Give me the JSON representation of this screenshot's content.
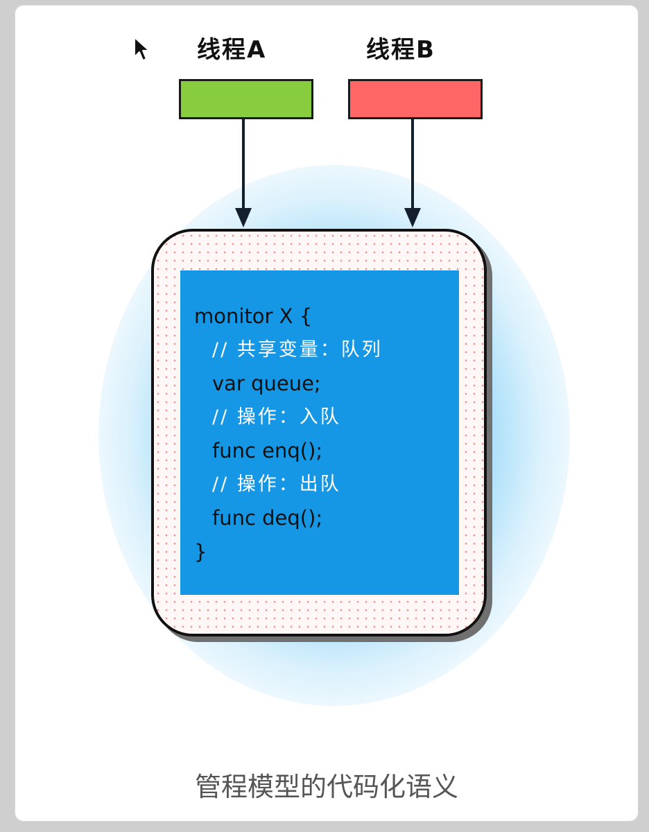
{
  "threads": [
    {
      "label": "线程A",
      "color": "#88cc3f"
    },
    {
      "label": "线程B",
      "color": "#ff6666"
    }
  ],
  "monitor": {
    "code_lines": [
      {
        "text": "monitor X {",
        "kind": "code",
        "indent": false
      },
      {
        "text": "// 共享变量：队列",
        "kind": "comment",
        "indent": true
      },
      {
        "text": "var queue;",
        "kind": "code",
        "indent": true
      },
      {
        "text": "// 操作：入队",
        "kind": "comment",
        "indent": true
      },
      {
        "text": "func enq();",
        "kind": "code",
        "indent": true
      },
      {
        "text": "// 操作：出队",
        "kind": "comment",
        "indent": true
      },
      {
        "text": "func deq();",
        "kind": "code",
        "indent": true
      },
      {
        "text": "}",
        "kind": "code",
        "indent": false
      }
    ],
    "code_background": "#1597e5",
    "glow_color": "#8fd4f5"
  },
  "caption": "管程模型的代码化语义"
}
